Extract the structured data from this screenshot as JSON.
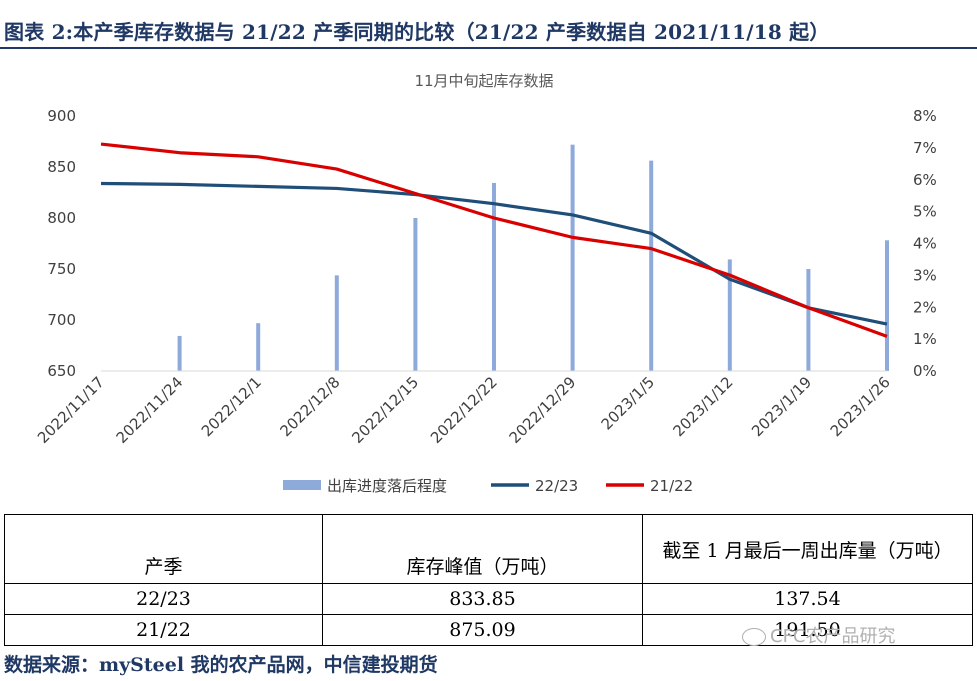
{
  "header": {
    "title": "图表 2:本产季库存数据与 21/22 产季同期的比较（21/22 产季数据自 2021/11/18 起）"
  },
  "chart_data": {
    "type": "bar+line",
    "title": "11月中旬起库存数据",
    "categories": [
      "2022/11/17",
      "2022/11/24",
      "2022/12/1",
      "2022/12/8",
      "2022/12/15",
      "2022/12/22",
      "2022/12/29",
      "2023/1/5",
      "2023/1/12",
      "2023/1/19",
      "2023/1/26"
    ],
    "y_left": {
      "ticks": [
        650,
        700,
        750,
        800,
        850,
        900
      ],
      "range": [
        650,
        900
      ]
    },
    "y_right": {
      "ticks": [
        "0%",
        "1%",
        "2%",
        "3%",
        "4%",
        "5%",
        "6%",
        "7%",
        "8%"
      ],
      "range": [
        0,
        8
      ]
    },
    "series": [
      {
        "name": "出库进度落后程度",
        "axis": "right",
        "type": "bar",
        "color": "#8eaadb",
        "values": [
          null,
          1.1,
          1.5,
          3.0,
          4.8,
          5.9,
          7.1,
          6.6,
          3.5,
          3.2,
          4.1
        ]
      },
      {
        "name": "22/23",
        "axis": "left",
        "type": "line",
        "color": "#1f4e79",
        "values": [
          833.85,
          833,
          831,
          829,
          823,
          814,
          803,
          785,
          740,
          712,
          696
        ]
      },
      {
        "name": "21/22",
        "axis": "left",
        "type": "line",
        "color": "#d90000",
        "values": [
          872.5,
          864,
          860,
          848,
          824,
          800,
          781,
          770,
          744,
          712,
          684
        ]
      }
    ],
    "legend_position": "bottom"
  },
  "table": {
    "headers": [
      "产季",
      "库存峰值（万吨）",
      "截至 1 月最后一周出库量（万吨）"
    ],
    "rows": [
      [
        "22/23",
        "833.85",
        "137.54"
      ],
      [
        "21/22",
        "875.09",
        "191.50"
      ]
    ]
  },
  "source": "数据来源：mySteel 我的农产品网，中信建投期货",
  "watermark": "CFC农产品研究"
}
